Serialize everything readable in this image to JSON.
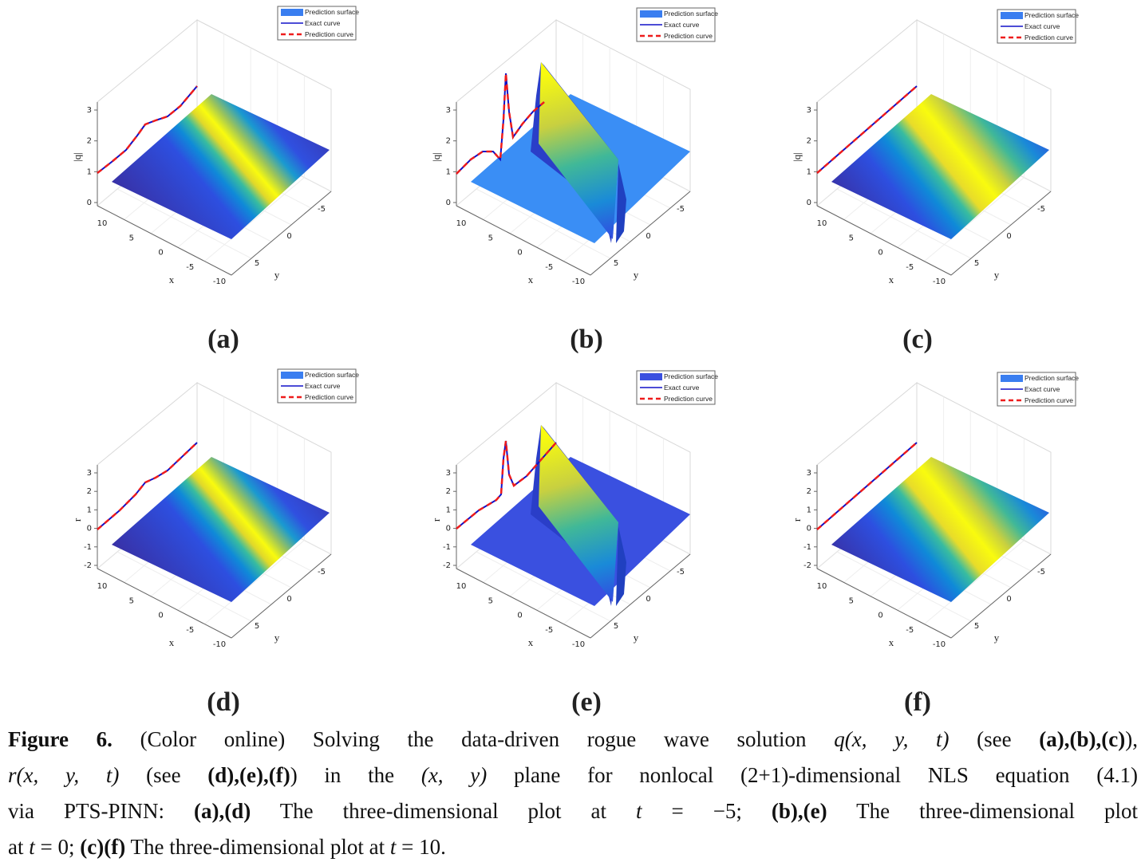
{
  "panels": [
    {
      "label": "(a)",
      "z_label": "|q|",
      "z_ticks": [
        "0",
        "1",
        "2",
        "3"
      ],
      "x_label": "x",
      "x_ticks": [
        "10",
        "5",
        "0",
        "-5",
        "-10"
      ],
      "y_label": "y",
      "y_ticks": [
        "-5",
        "0",
        "5"
      ],
      "legend": [
        "Prediction surface",
        "Exact curve",
        "Prediction curve"
      ]
    },
    {
      "label": "(b)",
      "z_label": "|q|",
      "z_ticks": [
        "0",
        "1",
        "2",
        "3"
      ],
      "x_label": "x",
      "x_ticks": [
        "10",
        "5",
        "0",
        "-5",
        "-10"
      ],
      "y_label": "y",
      "y_ticks": [
        "-5",
        "0",
        "5"
      ],
      "legend": [
        "Prediction surface",
        "Exact curve",
        "Prediction curve"
      ]
    },
    {
      "label": "(c)",
      "z_label": "|q|",
      "z_ticks": [
        "0",
        "1",
        "2",
        "3"
      ],
      "x_label": "x",
      "x_ticks": [
        "10",
        "5",
        "0",
        "-5",
        "-10"
      ],
      "y_label": "y",
      "y_ticks": [
        "-5",
        "0",
        "5"
      ],
      "legend": [
        "Prediction surface",
        "Exact curve",
        "Prediction curve"
      ]
    },
    {
      "label": "(d)",
      "z_label": "r",
      "z_ticks": [
        "-2",
        "-1",
        "0",
        "1",
        "2",
        "3"
      ],
      "x_label": "x",
      "x_ticks": [
        "10",
        "5",
        "0",
        "-5",
        "-10"
      ],
      "y_label": "y",
      "y_ticks": [
        "-5",
        "0",
        "5"
      ],
      "legend": [
        "Prediction surface",
        "Exact curve",
        "Prediction curve"
      ]
    },
    {
      "label": "(e)",
      "z_label": "r",
      "z_ticks": [
        "-2",
        "-1",
        "0",
        "1",
        "2",
        "3"
      ],
      "x_label": "x",
      "x_ticks": [
        "10",
        "5",
        "0",
        "-5",
        "-10"
      ],
      "y_label": "y",
      "y_ticks": [
        "-5",
        "0",
        "5"
      ],
      "legend": [
        "Prediction surface",
        "Exact curve",
        "Prediction curve"
      ]
    },
    {
      "label": "(f)",
      "z_label": "r",
      "z_ticks": [
        "-2",
        "-1",
        "0",
        "1",
        "2",
        "3"
      ],
      "x_label": "x",
      "x_ticks": [
        "10",
        "5",
        "0",
        "-5",
        "-10"
      ],
      "y_label": "y",
      "y_ticks": [
        "-5",
        "0",
        "5"
      ],
      "legend": [
        "Prediction surface",
        "Exact curve",
        "Prediction curve"
      ]
    }
  ],
  "caption": {
    "lines": [
      [
        {
          "text": "Figure 6.",
          "bold": true
        },
        {
          "text": " (Color online) Solving the data-driven rogue wave solution "
        },
        {
          "text": "q(x, y, t)",
          "italic": true
        },
        {
          "text": " (see "
        },
        {
          "text": "(a),(b),(c)",
          "bold": true
        },
        {
          "text": "),"
        }
      ],
      [
        {
          "text": "r(x, y, t)",
          "italic": true
        },
        {
          "text": " (see "
        },
        {
          "text": "(d),(e),(f)",
          "bold": true
        },
        {
          "text": ") in the "
        },
        {
          "text": "(x, y)",
          "italic": true
        },
        {
          "text": " plane for nonlocal (2+1)-dimensional NLS equation (4.1)"
        }
      ],
      [
        {
          "text": "via PTS-PINN: "
        },
        {
          "text": "(a),(d)",
          "bold": true
        },
        {
          "text": " The three-dimensional plot at "
        },
        {
          "text": "t",
          "italic": true
        },
        {
          "text": " = −5; "
        },
        {
          "text": "(b),(e)",
          "bold": true
        },
        {
          "text": " The three-dimensional plot"
        }
      ],
      [
        {
          "text": "at "
        },
        {
          "text": "t",
          "italic": true
        },
        {
          "text": " = 0; "
        },
        {
          "text": "(c)(f)",
          "bold": true
        },
        {
          "text": " The three-dimensional plot at "
        },
        {
          "text": "t",
          "italic": true
        },
        {
          "text": " = 10."
        }
      ]
    ]
  }
}
